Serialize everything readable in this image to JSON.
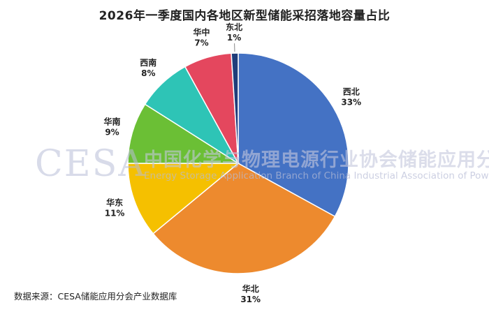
{
  "chart_data": {
    "type": "pie",
    "title": "2026年一季度国内各地区新型储能采招落地容量占比",
    "slices": [
      {
        "label": "西北",
        "value": 33,
        "display": "33%",
        "color": "#4472c4"
      },
      {
        "label": "华北",
        "value": 31,
        "display": "31%",
        "color": "#ed8a2e"
      },
      {
        "label": "华东",
        "value": 11,
        "display": "11%",
        "color": "#f5c000"
      },
      {
        "label": "华南",
        "value": 9,
        "display": "9%",
        "color": "#6bbf35"
      },
      {
        "label": "西南",
        "value": 8,
        "display": "8%",
        "color": "#2ec4b6"
      },
      {
        "label": "华中",
        "value": 7,
        "display": "7%",
        "color": "#e4475e"
      },
      {
        "label": "东北",
        "value": 1,
        "display": "1%",
        "color": "#1f3d7a"
      }
    ],
    "start_angle_deg": 0,
    "direction": "clockwise"
  },
  "watermark": {
    "latin": "CESA",
    "cn": "中国化学与物理电源行业协会储能应用分会",
    "en": "Energy Storage Application Branch of China Industrial Association of Power Sources"
  },
  "source_note": "数据来源：CESA储能应用分会产业数据库"
}
